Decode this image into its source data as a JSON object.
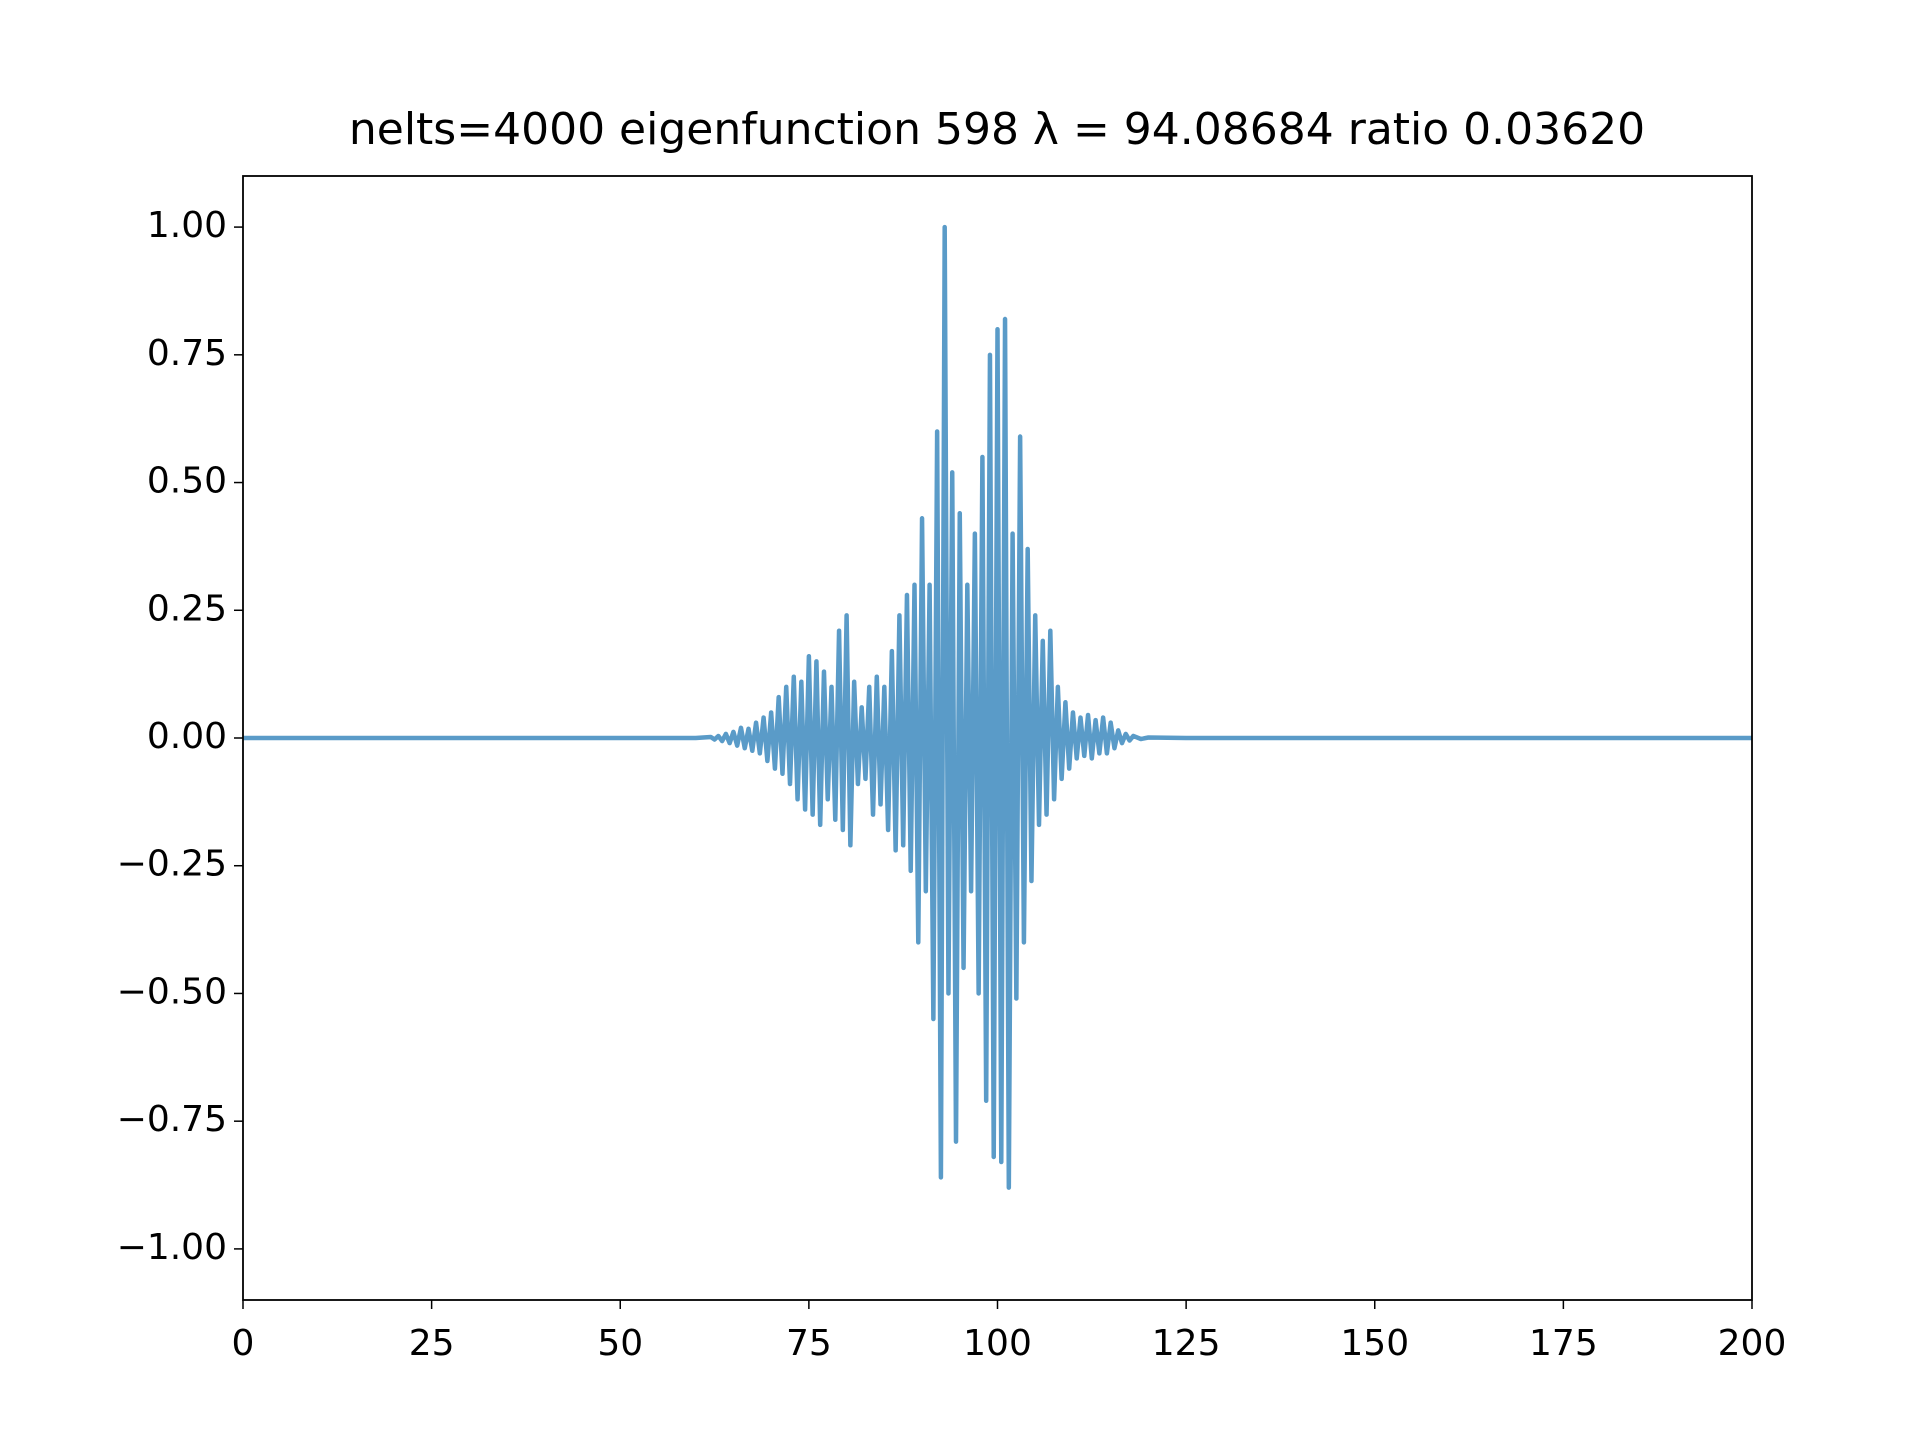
{
  "chart_data": {
    "type": "line",
    "title": "nelts=4000  eigenfunction 598  λ = 94.08684 ratio 0.03620",
    "color": "#5a9bc8",
    "x": [
      0,
      60,
      62,
      62.5,
      63,
      63.5,
      64,
      64.5,
      65,
      65.5,
      66,
      66.5,
      67,
      67.5,
      68,
      68.5,
      69,
      69.5,
      70,
      70.5,
      71,
      71.5,
      72,
      72.5,
      73,
      73.5,
      74,
      74.5,
      75,
      75.5,
      76,
      76.5,
      77,
      77.5,
      78,
      78.5,
      79,
      79.5,
      80,
      80.5,
      81,
      81.5,
      82,
      82.5,
      83,
      83.5,
      84,
      84.5,
      85,
      85.5,
      86,
      86.5,
      87,
      87.5,
      88,
      88.5,
      89,
      89.5,
      90,
      90.5,
      91,
      91.5,
      92,
      92.5,
      93,
      93.5,
      94,
      94.5,
      95,
      95.5,
      96,
      96.5,
      97,
      97.5,
      98,
      98.5,
      99,
      99.5,
      100,
      100.5,
      101,
      101.5,
      102,
      102.5,
      103,
      103.5,
      104,
      104.5,
      105,
      105.5,
      106,
      106.5,
      107,
      107.5,
      108,
      108.5,
      109,
      109.5,
      110,
      110.5,
      111,
      111.5,
      112,
      112.5,
      113,
      113.5,
      114,
      114.5,
      115,
      115.5,
      116,
      116.5,
      117,
      117.5,
      118,
      119,
      120,
      125,
      200
    ],
    "values": [
      0,
      0,
      0.002,
      -0.003,
      0.004,
      -0.006,
      0.008,
      -0.01,
      0.012,
      -0.015,
      0.02,
      -0.02,
      0.018,
      -0.025,
      0.03,
      -0.03,
      0.04,
      -0.045,
      0.05,
      -0.06,
      0.08,
      -0.07,
      0.1,
      -0.09,
      0.12,
      -0.12,
      0.11,
      -0.14,
      0.16,
      -0.15,
      0.15,
      -0.17,
      0.13,
      -0.12,
      0.1,
      -0.16,
      0.21,
      -0.18,
      0.24,
      -0.21,
      0.11,
      -0.09,
      0.06,
      -0.08,
      0.1,
      -0.15,
      0.12,
      -0.13,
      0.1,
      -0.18,
      0.17,
      -0.22,
      0.24,
      -0.21,
      0.28,
      -0.26,
      0.3,
      -0.4,
      0.43,
      -0.3,
      0.3,
      -0.55,
      0.6,
      -0.86,
      1.0,
      -0.5,
      0.52,
      -0.79,
      0.44,
      -0.45,
      0.3,
      -0.3,
      0.4,
      -0.5,
      0.55,
      -0.71,
      0.75,
      -0.82,
      0.8,
      -0.83,
      0.82,
      -0.88,
      0.4,
      -0.51,
      0.59,
      -0.4,
      0.37,
      -0.28,
      0.24,
      -0.17,
      0.19,
      -0.15,
      0.21,
      -0.12,
      0.1,
      -0.08,
      0.07,
      -0.06,
      0.05,
      -0.04,
      0.04,
      -0.035,
      0.045,
      -0.04,
      0.035,
      -0.03,
      0.04,
      -0.03,
      0.03,
      -0.02,
      0.015,
      -0.01,
      0.008,
      -0.005,
      0.004,
      -0.002,
      0.001,
      0,
      0
    ],
    "xlim": [
      0,
      200
    ],
    "xticks": [
      0,
      25,
      50,
      75,
      100,
      125,
      150,
      175,
      200
    ],
    "ylim": [
      -1.1,
      1.1
    ],
    "yticks": [
      {
        "value": -1,
        "label": "−1.00"
      },
      {
        "value": -0.75,
        "label": "−0.75"
      },
      {
        "value": -0.5,
        "label": "−0.50"
      },
      {
        "value": -0.25,
        "label": "−0.25"
      },
      {
        "value": 0,
        "label": "0.00"
      },
      {
        "value": 0.25,
        "label": "0.25"
      },
      {
        "value": 0.5,
        "label": "0.50"
      },
      {
        "value": 0.75,
        "label": "0.75"
      },
      {
        "value": 1,
        "label": "1.00"
      }
    ],
    "grid": false
  }
}
